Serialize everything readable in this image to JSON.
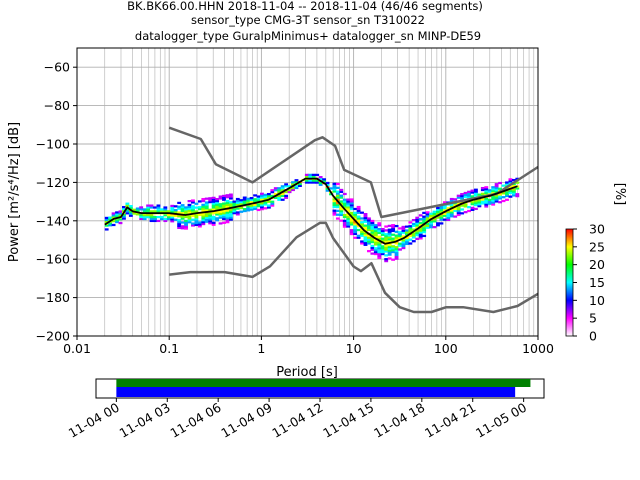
{
  "chart_data": [
    {
      "type": "heatmap",
      "title_lines": [
        "BK.BK66.00.HHN   2018-11-04 -- 2018-11-04  (46/46 segments)",
        "sensor_type CMG-3T sensor_sn T310022",
        "datalogger_type GuralpMinimus+ datalogger_sn MINP-DE59"
      ],
      "xlabel": "Period [s]",
      "ylabel": "Power [m²/s⁴/Hz] [dB]",
      "xscale": "log",
      "xlim": [
        0.01,
        1000
      ],
      "ylim": [
        -200,
        -50
      ],
      "grid": true,
      "x_ticks": [
        {
          "value": 0.01,
          "label": "0.01"
        },
        {
          "value": 0.1,
          "label": "0.1"
        },
        {
          "value": 1,
          "label": "1"
        },
        {
          "value": 10,
          "label": "10"
        },
        {
          "value": 100,
          "label": "100"
        },
        {
          "value": 1000,
          "label": "1000"
        }
      ],
      "y_ticks": [
        -60,
        -80,
        -100,
        -120,
        -140,
        -160,
        -180,
        -200
      ],
      "mode_curve": {
        "x": [
          0.02,
          0.025,
          0.03,
          0.035,
          0.04,
          0.05,
          0.07,
          0.1,
          0.15,
          0.2,
          0.3,
          0.5,
          0.8,
          1.2,
          2.0,
          3.0,
          4.0,
          5.0,
          6.0,
          8.0,
          10,
          13,
          17,
          22,
          28,
          35,
          50,
          70,
          100,
          150,
          200,
          300,
          400,
          600
        ],
        "y": [
          -142,
          -139,
          -138,
          -133,
          -135,
          -136,
          -136,
          -136,
          -137,
          -136,
          -135,
          -133,
          -131,
          -129,
          -123,
          -118,
          -118,
          -121,
          -127,
          -134,
          -139,
          -145,
          -149,
          -152,
          -151,
          -149,
          -144,
          -139,
          -135,
          -131,
          -129,
          -127,
          -125,
          -122
        ]
      },
      "high_noise_model": {
        "x": [
          0.1,
          0.22,
          0.32,
          0.8,
          3.8,
          4.6,
          6.3,
          7.9,
          15.4,
          20,
          354.8,
          1000
        ],
        "y": [
          -91.5,
          -97.4,
          -110.5,
          -120,
          -98,
          -96.5,
          -101,
          -113.5,
          -120,
          -138,
          -126,
          -112
        ]
      },
      "low_noise_model": {
        "x": [
          0.1,
          0.17,
          0.4,
          0.8,
          1.24,
          2.4,
          4.3,
          5.0,
          6.0,
          10,
          12,
          15.6,
          21.9,
          31.6,
          45,
          70,
          101,
          154,
          328,
          600,
          1000
        ],
        "y": [
          -168,
          -166.7,
          -166.7,
          -169.2,
          -163.7,
          -148.6,
          -141.1,
          -141.1,
          -149,
          -163.8,
          -166.2,
          -162.1,
          -177.5,
          -185,
          -187.5,
          -187.5,
          -185,
          -185,
          -187.5,
          -184.4,
          -178
        ]
      },
      "colorbar": {
        "label": "[%]",
        "min": 0,
        "max": 30,
        "ticks": [
          0,
          5,
          10,
          15,
          20,
          25,
          30
        ],
        "colors": [
          "#ffffff",
          "#ff00ff",
          "#0000ff",
          "#00ffff",
          "#00ff00",
          "#ffff00",
          "#ff0000"
        ]
      }
    },
    {
      "type": "timeline",
      "x_ticks": [
        "11-04 00",
        "11-04 03",
        "11-04 06",
        "11-04 09",
        "11-04 12",
        "11-04 15",
        "11-04 18",
        "11-04 21",
        "11-05 00"
      ],
      "time_range_hours": [
        -1.2,
        25.2
      ],
      "segments": [
        {
          "color": "#008000",
          "start_hours": 0,
          "end_hours": 24.4
        },
        {
          "color": "#0000ff",
          "start_hours": 0,
          "end_hours": 23.5
        }
      ]
    }
  ]
}
